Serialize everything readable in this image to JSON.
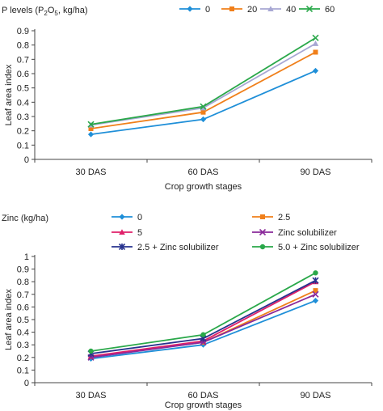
{
  "chart_data": [
    {
      "type": "line",
      "legend_title_main": "P levels (P",
      "legend_title_sub": "2",
      "legend_title_mid": "O",
      "legend_title_sub2": "5",
      "legend_title_end": ", kg/ha)",
      "categories": [
        "30 DAS",
        "60 DAS",
        "90 DAS"
      ],
      "xlabel": "Crop growth stages",
      "ylabel": "Leaf area index",
      "ylim": [
        0,
        0.9
      ],
      "yticks": [
        "0",
        "0.1",
        "0.2",
        "0.3",
        "0.4",
        "0.5",
        "0.6",
        "0.7",
        "0.8",
        "0.9"
      ],
      "grid": false,
      "legend_position": "top-right",
      "series": [
        {
          "name": "0",
          "values": [
            0.175,
            0.28,
            0.62
          ],
          "color": "#1f8fd8",
          "marker": "diamond"
        },
        {
          "name": "20",
          "values": [
            0.215,
            0.33,
            0.75
          ],
          "color": "#f07f1a",
          "marker": "square"
        },
        {
          "name": "40",
          "values": [
            0.24,
            0.36,
            0.81
          ],
          "color": "#a7a7d3",
          "marker": "triangle"
        },
        {
          "name": "60",
          "values": [
            0.245,
            0.37,
            0.85
          ],
          "color": "#2aa84a",
          "marker": "x"
        }
      ]
    },
    {
      "type": "line",
      "legend_title": "Zinc (kg/ha)",
      "categories": [
        "30 DAS",
        "60 DAS",
        "90 DAS"
      ],
      "xlabel": "Crop growth stages",
      "ylabel": "Leaf area index",
      "ylim": [
        0,
        1
      ],
      "yticks": [
        "0",
        "0.1",
        "0.2",
        "0.3",
        "0.4",
        "0.5",
        "0.6",
        "0.7",
        "0.8",
        "0.9",
        "1"
      ],
      "grid": false,
      "legend_position": "top",
      "series": [
        {
          "name": "0",
          "values": [
            0.19,
            0.3,
            0.65
          ],
          "color": "#1f8fd8",
          "marker": "diamond"
        },
        {
          "name": "2.5",
          "values": [
            0.205,
            0.32,
            0.73
          ],
          "color": "#f07f1a",
          "marker": "square"
        },
        {
          "name": "5",
          "values": [
            0.21,
            0.33,
            0.8
          ],
          "color": "#e0206a",
          "marker": "triangle"
        },
        {
          "name": "Zinc solubilizer",
          "values": [
            0.2,
            0.32,
            0.7
          ],
          "color": "#8a2a9a",
          "marker": "x"
        },
        {
          "name": "2.5 + Zinc solubilizer",
          "values": [
            0.23,
            0.35,
            0.81
          ],
          "color": "#27328e",
          "marker": "star"
        },
        {
          "name": "5.0 + Zinc solubilizer",
          "values": [
            0.25,
            0.38,
            0.87
          ],
          "color": "#2aa84a",
          "marker": "circle"
        }
      ]
    }
  ]
}
